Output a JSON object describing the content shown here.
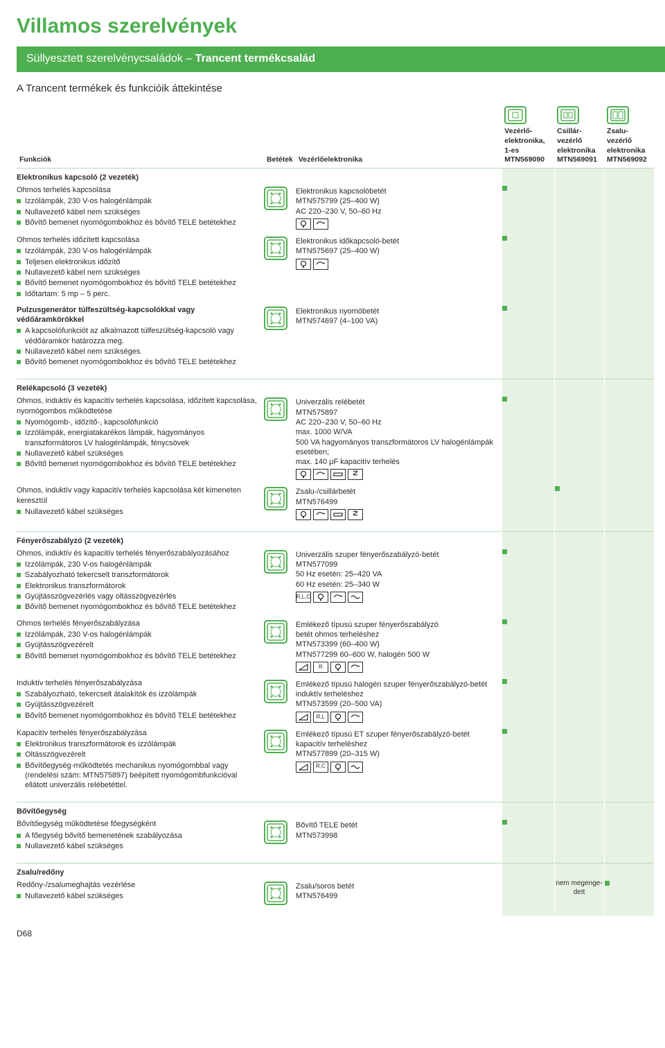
{
  "page": {
    "title": "Villamos szerelvények",
    "subtitle_prefix": "Süllyesztett szerelvénycsaládok – ",
    "subtitle_bold": "Trancent termékcsalád",
    "overview_title": "A Trancent termékek és funkcióik áttekintése",
    "footer": "D68"
  },
  "headers": {
    "func": "Funkciók",
    "bet": "Betétek",
    "vez": "Vezérlőelektronika",
    "c1_l1": "Vezérlő-",
    "c1_l2": "elektronika,",
    "c1_l3": "1-es",
    "c1_l4": "MTN569090",
    "c2_l1": "Csillár-",
    "c2_l2": "vezérlő",
    "c2_l3": "elektronika",
    "c2_l4": "MTN569091",
    "c3_l1": "Zsalu-",
    "c3_l2": "vezérlő",
    "c3_l3": "elektronika",
    "c3_l4": "MTN569092"
  },
  "groups": [
    {
      "title": "Elektronikus kapcsoló (2 vezeték)",
      "rows": [
        {
          "head": "Ohmos terhelés kapcsolása",
          "bullets": [
            "Izzólámpák, 230 V-os halogénlámpák",
            "Nullavezető kábel nem szükséges",
            "Bővítő bemenet nyomógombokhoz és bővítő TELE betétekhez"
          ],
          "vez": [
            "Elektronikus kapcsolóbetét",
            "MTN575799 (25–400 W)",
            "AC 220–230 V, 50–60 Hz"
          ],
          "icons": [
            "bulb",
            "hand"
          ],
          "marks": [
            true,
            false,
            false
          ]
        },
        {
          "head": "Ohmos terhelés időzített kapcsolása",
          "bullets": [
            "Izzólámpák, 230 V-os halogénlámpák",
            "Teljesen elektronikus időzítő",
            "Nullavezető kábel nem szükséges",
            "Bővítő bemenet nyomógombokhoz és bővítő TELE betétekhez",
            "Időtartam: 5 mp – 5 perc."
          ],
          "vez": [
            "Elektronikus időkapcsoló-betét",
            "MTN575697 (25–400 W)"
          ],
          "icons": [
            "bulb",
            "hand"
          ],
          "marks": [
            true,
            false,
            false
          ]
        },
        {
          "head_bold": "Pulzusgenerátor túlfeszültség-kapcsolókkal vagy védőáramkörökkel",
          "bullets": [
            "A kapcsolófunkciót az alkalmazott túlfeszültség-kapcsoló vagy védőáramkör határozza meg.",
            "Nullavezető kábel nem szükséges.",
            "Bővítő bemenet nyomógombokhoz és bővítő TELE betétekhez"
          ],
          "vez": [
            "Elektronikus nyomóbetét",
            "MTN574697 (4–100 VA)"
          ],
          "icons": [],
          "marks": [
            true,
            false,
            false
          ]
        }
      ]
    },
    {
      "title": "Relékapcsoló (3 vezeték)",
      "rows": [
        {
          "head": "Ohmos, induktív és kapacitív terhelés kapcsolása, időzített kapcsolása, nyomógombos működtetése",
          "bullets": [
            "Nyomógomb-, időzítő-, kapcsolófunkció",
            "Izzólámpák, energiatakarékos lámpák, hagyományos transzformátoros LV halogénlámpák, fénycsövek",
            "Nullavezető kábel szükséges",
            "Bővítő bemenet nyomógombokhoz és bővítő TELE betétekhez"
          ],
          "vez": [
            "Univerzális relébetét",
            "MTN575897",
            "AC 220–230 V, 50–60 Hz",
            "max. 1000 W/VA",
            "500 VA hagyományos transzformátoros LV halogénlámpák esetében;",
            "max. 140 μF kapacitív terhelés"
          ],
          "icons": [
            "bulb",
            "hand",
            "tube",
            "cfl"
          ],
          "marks": [
            true,
            false,
            false
          ]
        },
        {
          "head": "Ohmos, induktív vagy kapacitív terhelés kapcsolása két kimeneten keresztül",
          "bullets": [
            "Nullavezető kábel szükséges"
          ],
          "vez": [
            "Zsalu-/csillárbetét",
            "MTN576499"
          ],
          "icons": [
            "bulb",
            "hand",
            "tube",
            "cfl"
          ],
          "marks": [
            false,
            true,
            false
          ]
        }
      ]
    },
    {
      "title": "Fényerőszabályzó (2 vezeték)",
      "rows": [
        {
          "head": "Ohmos, induktív és kapacitív terhelés fényerőszabályozásához",
          "bullets": [
            "Izzólámpák, 230 V-os halogénlámpák",
            "Szabályozható tekercselt transzformátorok",
            "Elektronikus transzformátorok",
            "Gyújtásszögvezérlés vagy oltásszögvezérlés",
            "Bővítő bemenet nyomógombokhoz és bővítő TELE betétekhez"
          ],
          "vez": [
            "Univerzális szuper fényerőszabályzó-betét",
            "MTN577099",
            "50 Hz esetén: 25–420 VA",
            "60 Hz esetén: 25–340 W"
          ],
          "icons": [
            "rlc",
            "bulb",
            "hand",
            "wave"
          ],
          "marks": [
            true,
            false,
            false
          ]
        },
        {
          "head": "Ohmos terhelés fényerőszabályzása",
          "bullets": [
            "Izzólámpák, 230 V-os halogénlámpák",
            "Gyújtásszögvezérelt",
            "Bővítő bemenet nyomógombokhoz és bővítő TELE betétekhez"
          ],
          "vez": [
            "Emlékező típusú szuper fényerőszabályzó",
            "betét ohmos terheléshez",
            "MTN573399 (60–400 W)",
            "MTN577299 60–600 W, halogén 500 W"
          ],
          "icons": [
            "tri",
            "r",
            "bulb",
            "hand"
          ],
          "marks": [
            true,
            false,
            false
          ]
        },
        {
          "head": "Induktív terhelés fényerőszabályzása",
          "bullets": [
            "Szabályozható, tekercselt átalakítók és izzólámpák",
            "Gyújtásszögvezérelt",
            "Bővítő bemenet nyomógombokhoz és bővítő TELE betétekhez"
          ],
          "vez": [
            "Emlékező típusú halogén szuper fényerőszabályzó-betét induktív terheléshez",
            "MTN573599 (20–500 VA)"
          ],
          "icons": [
            "tri",
            "rl",
            "bulb",
            "hand"
          ],
          "marks": [
            true,
            false,
            false
          ]
        },
        {
          "head": "Kapacitív terhelés fényerőszabályzása",
          "bullets": [
            "Elektronikus transzformátorok és izzólámpák",
            "Oltásszögvezérelt",
            "Bővítőegység-működtetés mechanikus nyomógombbal vagy (rendelési szám: MTN575897) beépített nyomógombfunkcióval ellátott univerzális relébetéttel."
          ],
          "vez": [
            "Emlékező típusú ET szuper fényerőszabályzó-betét kapacitív terheléshez",
            "MTN577899 (20–315 W)"
          ],
          "icons": [
            "tri",
            "rc",
            "bulb",
            "wave"
          ],
          "marks": [
            true,
            false,
            false
          ]
        }
      ]
    },
    {
      "title": "Bővítőegység",
      "rows": [
        {
          "head": "Bővítőegység működtetése főegységként",
          "bullets": [
            "A főegység bővítő bemenetének szabályozása",
            "Nullavezető kábel szükséges"
          ],
          "vez": [
            "Bővítő TELE betét",
            "MTN573998"
          ],
          "icons": [],
          "marks": [
            true,
            false,
            false
          ]
        }
      ]
    },
    {
      "title": "Zsalu/redőny",
      "rows": [
        {
          "head": "Redőny-/zsalumeghajtás vezérlése",
          "bullets": [
            "Nullavezető kábel szükséges"
          ],
          "vez": [
            "Zsalu/soros betét",
            "MTN576499"
          ],
          "icons": [],
          "marks": [
            false,
            "text",
            true
          ],
          "mark_text": "nem megenge-dett"
        }
      ]
    }
  ],
  "colors": {
    "brand": "#4daf4f",
    "mark_bg": "#e7f2e4",
    "rule": "#b7d9b7"
  }
}
